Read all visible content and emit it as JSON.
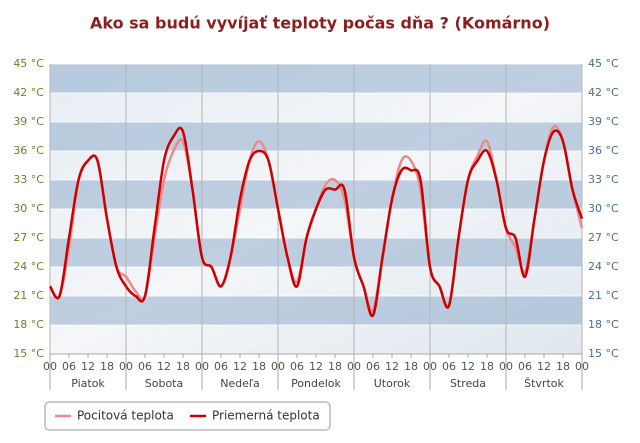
{
  "chart_data": {
    "type": "line",
    "title": "Ako sa budú vyvíjať teploty počas dňa ? (Komárno)",
    "x": [
      0,
      3,
      6,
      9,
      12,
      15,
      18,
      21,
      24,
      27,
      30,
      33,
      36,
      39,
      42,
      45,
      48,
      51,
      54,
      57,
      60,
      63,
      66,
      69,
      72,
      75,
      78,
      81,
      84,
      87,
      90,
      93,
      96,
      99,
      102,
      105,
      108,
      111,
      114,
      117,
      120,
      123,
      126,
      129,
      132,
      135,
      138,
      141,
      144,
      147,
      150,
      153,
      156,
      159,
      162,
      165,
      168
    ],
    "series": [
      {
        "name": "Pocitová teplota",
        "color": "#ec8a8a",
        "values": [
          22,
          21,
          26,
          33,
          35,
          35,
          29,
          24,
          23,
          21.5,
          21,
          27,
          33,
          36,
          37,
          32,
          25,
          24,
          22,
          25,
          30,
          35,
          37,
          35,
          30,
          25,
          22.5,
          27,
          30,
          32.5,
          33,
          31,
          25,
          22,
          19.5,
          25,
          31,
          35,
          35,
          32,
          24,
          22,
          20,
          27,
          33,
          35.5,
          37,
          33,
          28,
          26,
          23.5,
          29,
          35,
          38.5,
          37,
          32,
          28
        ]
      },
      {
        "name": "Priemerná teplota",
        "color": "#cc0000",
        "values": [
          22,
          21,
          27,
          33,
          35,
          35,
          29,
          24,
          22,
          21,
          21,
          28,
          35,
          37.5,
          38,
          32,
          25,
          24,
          22,
          25,
          31,
          35,
          36,
          35,
          30,
          25,
          22,
          27,
          30,
          32,
          32,
          32,
          25,
          22,
          19,
          25,
          31,
          34,
          34,
          33,
          24,
          22,
          20,
          27,
          33,
          35,
          36,
          33,
          28,
          27,
          23,
          29,
          35,
          38,
          37,
          32,
          29
        ]
      }
    ],
    "xlim": [
      0,
      168
    ],
    "xticks": [
      {
        "value": 0,
        "label": "00"
      },
      {
        "value": 6,
        "label": "06"
      },
      {
        "value": 12,
        "label": "12"
      },
      {
        "value": 18,
        "label": "18"
      },
      {
        "value": 24,
        "label": "00"
      },
      {
        "value": 30,
        "label": "06"
      },
      {
        "value": 36,
        "label": "12"
      },
      {
        "value": 42,
        "label": "18"
      },
      {
        "value": 48,
        "label": "00"
      },
      {
        "value": 54,
        "label": "06"
      },
      {
        "value": 60,
        "label": "12"
      },
      {
        "value": 66,
        "label": "18"
      },
      {
        "value": 72,
        "label": "00"
      },
      {
        "value": 78,
        "label": "06"
      },
      {
        "value": 84,
        "label": "12"
      },
      {
        "value": 90,
        "label": "18"
      },
      {
        "value": 96,
        "label": "00"
      },
      {
        "value": 102,
        "label": "06"
      },
      {
        "value": 108,
        "label": "12"
      },
      {
        "value": 114,
        "label": "18"
      },
      {
        "value": 120,
        "label": "00"
      },
      {
        "value": 126,
        "label": "06"
      },
      {
        "value": 132,
        "label": "12"
      },
      {
        "value": 138,
        "label": "18"
      },
      {
        "value": 144,
        "label": "00"
      },
      {
        "value": 150,
        "label": "06"
      },
      {
        "value": 156,
        "label": "12"
      },
      {
        "value": 162,
        "label": "18"
      },
      {
        "value": 168,
        "label": "00"
      }
    ],
    "x_groups": [
      "Piatok",
      "Sobota",
      "Nedeľa",
      "Pondelok",
      "Utorok",
      "Streda",
      "Štvrtok"
    ],
    "ylim": [
      15,
      45
    ],
    "yticks": [
      {
        "value": 15,
        "label": "15 °C"
      },
      {
        "value": 18,
        "label": "18 °C"
      },
      {
        "value": 21,
        "label": "21 °C"
      },
      {
        "value": 24,
        "label": "24 °C"
      },
      {
        "value": 27,
        "label": "27 °C"
      },
      {
        "value": 30,
        "label": "30 °C"
      },
      {
        "value": 33,
        "label": "33 °C"
      },
      {
        "value": 36,
        "label": "36 °C"
      },
      {
        "value": 39,
        "label": "39 °C"
      },
      {
        "value": 42,
        "label": "42 °C"
      },
      {
        "value": 45,
        "label": "45 °C"
      }
    ],
    "y2lim": [
      15,
      45
    ],
    "y2ticks": [
      {
        "value": 15,
        "label": "15 °C"
      },
      {
        "value": 18,
        "label": "18 °C"
      },
      {
        "value": 21,
        "label": "21 °C"
      },
      {
        "value": 24,
        "label": "24 °C"
      },
      {
        "value": 27,
        "label": "27 °C"
      },
      {
        "value": 30,
        "label": "30 °C"
      },
      {
        "value": 33,
        "label": "33 °C"
      },
      {
        "value": 36,
        "label": "36 °C"
      },
      {
        "value": 39,
        "label": "39 °C"
      },
      {
        "value": 42,
        "label": "42 °C"
      },
      {
        "value": 45,
        "label": "45 °C"
      }
    ],
    "grid": true
  }
}
